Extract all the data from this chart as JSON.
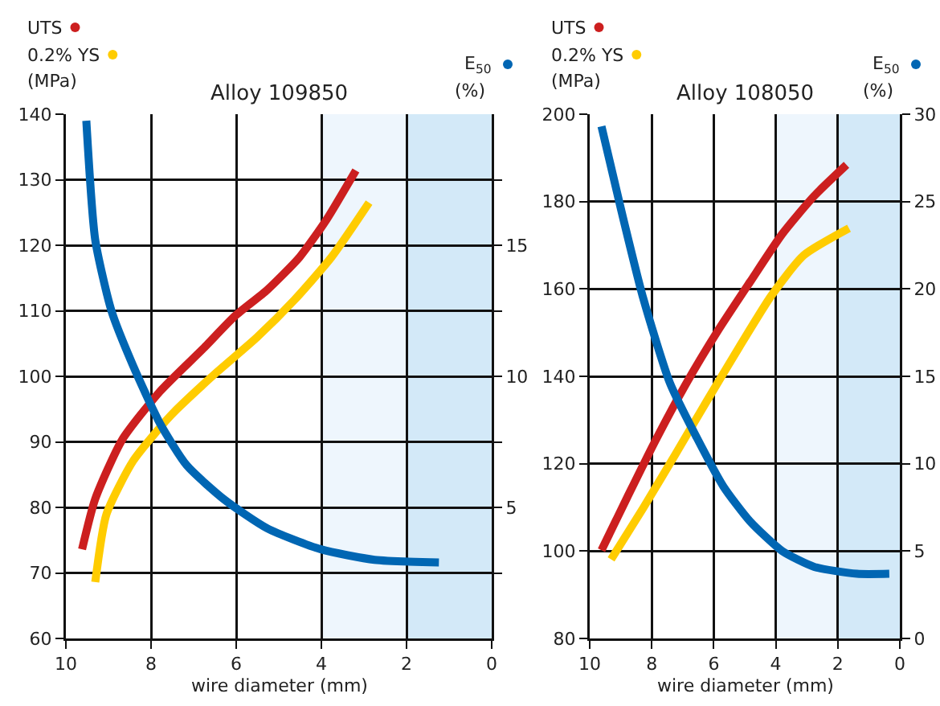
{
  "chart_data": [
    {
      "type": "line",
      "title": "Alloy 109850",
      "xlabel": "wire diameter (mm)",
      "ylabel": "(MPa)",
      "y2label": "(%)",
      "xlim": [
        10,
        0
      ],
      "xticks": [
        10,
        8,
        6,
        4,
        2,
        0
      ],
      "ylim": [
        60,
        140
      ],
      "yticks": [
        60,
        70,
        80,
        90,
        100,
        110,
        120,
        130,
        140
      ],
      "y2lim": [
        0,
        20
      ],
      "y2ticks": [
        {
          "value": 2.5,
          "label": null
        },
        5,
        {
          "value": 7.5,
          "label": null
        },
        10,
        {
          "value": 12.5,
          "label": null
        },
        15,
        {
          "value": 17.5,
          "label": null
        }
      ],
      "grid": true,
      "legend": "top",
      "line_style": "solid",
      "bands": [
        {
          "axis": "x",
          "from": 4,
          "to": 2,
          "color": "#eef6fd"
        },
        {
          "axis": "x",
          "from": 2,
          "to": 0,
          "color": "#d3e9f8"
        }
      ],
      "series": [
        {
          "name": "UTS",
          "color": "#cc1f1f",
          "x": [
            9.62,
            9.31,
            8.68,
            7.79,
            6.78,
            6.03,
            5.27,
            4.51,
            3.88,
            3.19
          ],
          "values": [
            73.6,
            81.3,
            90.3,
            97.7,
            104.2,
            109.2,
            113.2,
            118.2,
            123.9,
            131.4
          ]
        },
        {
          "name": "0.2% YS",
          "color": "#ffcc00",
          "x": [
            9.31,
            9.05,
            8.42,
            7.54,
            6.53,
            5.52,
            4.64,
            3.76,
            2.88
          ],
          "values": [
            68.6,
            78.9,
            87.1,
            94,
            100.2,
            105.9,
            111.6,
            118.2,
            126.5
          ]
        },
        {
          "name": "E$_{50}$",
          "color": "#0066b3",
          "axis": "y2",
          "x": [
            9.52,
            9.31,
            8.93,
            8.42,
            7.79,
            7.16,
            6.28,
            5.27,
            4.01,
            2.75,
            1.24
          ],
          "values": [
            19.75,
            15.2,
            12.5,
            10.4,
            8.2,
            6.6,
            5.3,
            4.2,
            3.4,
            3.0,
            2.9
          ]
        }
      ]
    },
    {
      "type": "line",
      "title": "Alloy 108050",
      "xlabel": "wire diameter (mm)",
      "ylabel": "(MPa)",
      "y2label": "(%)",
      "xlim": [
        10,
        0
      ],
      "xticks": [
        10,
        8,
        6,
        4,
        2,
        0
      ],
      "ylim": [
        80,
        200
      ],
      "yticks": [
        80,
        100,
        120,
        140,
        160,
        180,
        200
      ],
      "y2lim": [
        0,
        30
      ],
      "y2ticks": [
        0,
        5,
        10,
        15,
        20,
        25,
        30
      ],
      "grid": true,
      "legend": "top",
      "line_style": "solid",
      "bands": [
        {
          "axis": "x",
          "from": 4,
          "to": 2,
          "color": "#eef6fd"
        },
        {
          "axis": "x",
          "from": 2,
          "to": 0,
          "color": "#d3e9f8"
        }
      ],
      "series": [
        {
          "name": "UTS",
          "color": "#cc1f1f",
          "x": [
            9.62,
            8.79,
            7.93,
            6.9,
            5.86,
            4.83,
            3.79,
            2.76,
            1.72
          ],
          "values": [
            100.2,
            112.3,
            124.6,
            138.2,
            150.5,
            161.6,
            172.6,
            181.3,
            188.4
          ]
        },
        {
          "name": "0.2% YS",
          "color": "#ffcc00",
          "x": [
            9.31,
            8.28,
            7.24,
            6.21,
            5.17,
            4.14,
            3.1,
            1.64
          ],
          "values": [
            98.1,
            109.8,
            122.1,
            134.5,
            146.8,
            158.5,
            167.7,
            173.9
          ]
        },
        {
          "name": "E$_{50}$",
          "color": "#0066b3",
          "axis": "y2",
          "x": [
            9.62,
            8.97,
            8.28,
            7.41,
            6.55,
            5.69,
            4.83,
            3.79,
            2.76,
            1.38,
            0.34
          ],
          "values": [
            29.3,
            24.4,
            19.5,
            14.6,
            11.5,
            8.7,
            6.7,
            5,
            4.1,
            3.7,
            3.7
          ]
        }
      ]
    }
  ]
}
